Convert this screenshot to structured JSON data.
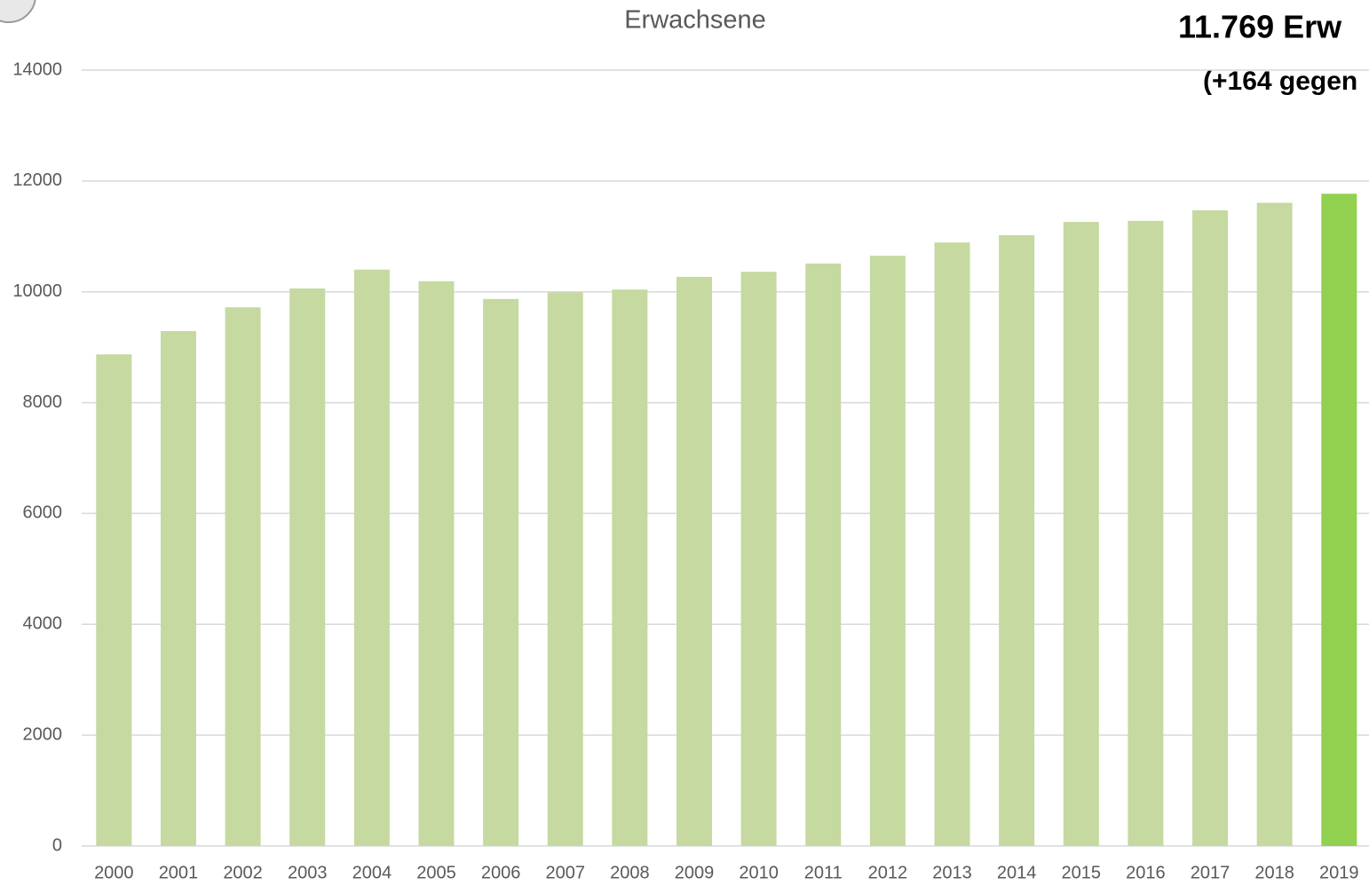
{
  "chart_data": {
    "type": "bar",
    "title": "Erwachsene",
    "annotations": [
      "11.769 Erw",
      "(+164 gegen"
    ],
    "categories": [
      "2000",
      "2001",
      "2002",
      "2003",
      "2004",
      "2005",
      "2006",
      "2007",
      "2008",
      "2009",
      "2010",
      "2011",
      "2012",
      "2013",
      "2014",
      "2015",
      "2016",
      "2017",
      "2018",
      "2019"
    ],
    "values": [
      8870,
      9290,
      9720,
      10060,
      10400,
      10190,
      9870,
      9990,
      10040,
      10270,
      10360,
      10510,
      10650,
      10890,
      11020,
      11260,
      11280,
      11470,
      11605,
      11769
    ],
    "colors": [
      "#c5d9a0",
      "#c5d9a0",
      "#c5d9a0",
      "#c5d9a0",
      "#c5d9a0",
      "#c5d9a0",
      "#c5d9a0",
      "#c5d9a0",
      "#c5d9a0",
      "#c5d9a0",
      "#c5d9a0",
      "#c5d9a0",
      "#c5d9a0",
      "#c5d9a0",
      "#c5d9a0",
      "#c5d9a0",
      "#c5d9a0",
      "#c5d9a0",
      "#c5d9a0",
      "#92d050"
    ],
    "ylim": [
      0,
      14000
    ],
    "yticks": [
      0,
      2000,
      4000,
      6000,
      8000,
      10000,
      12000,
      14000
    ],
    "grid": true
  }
}
